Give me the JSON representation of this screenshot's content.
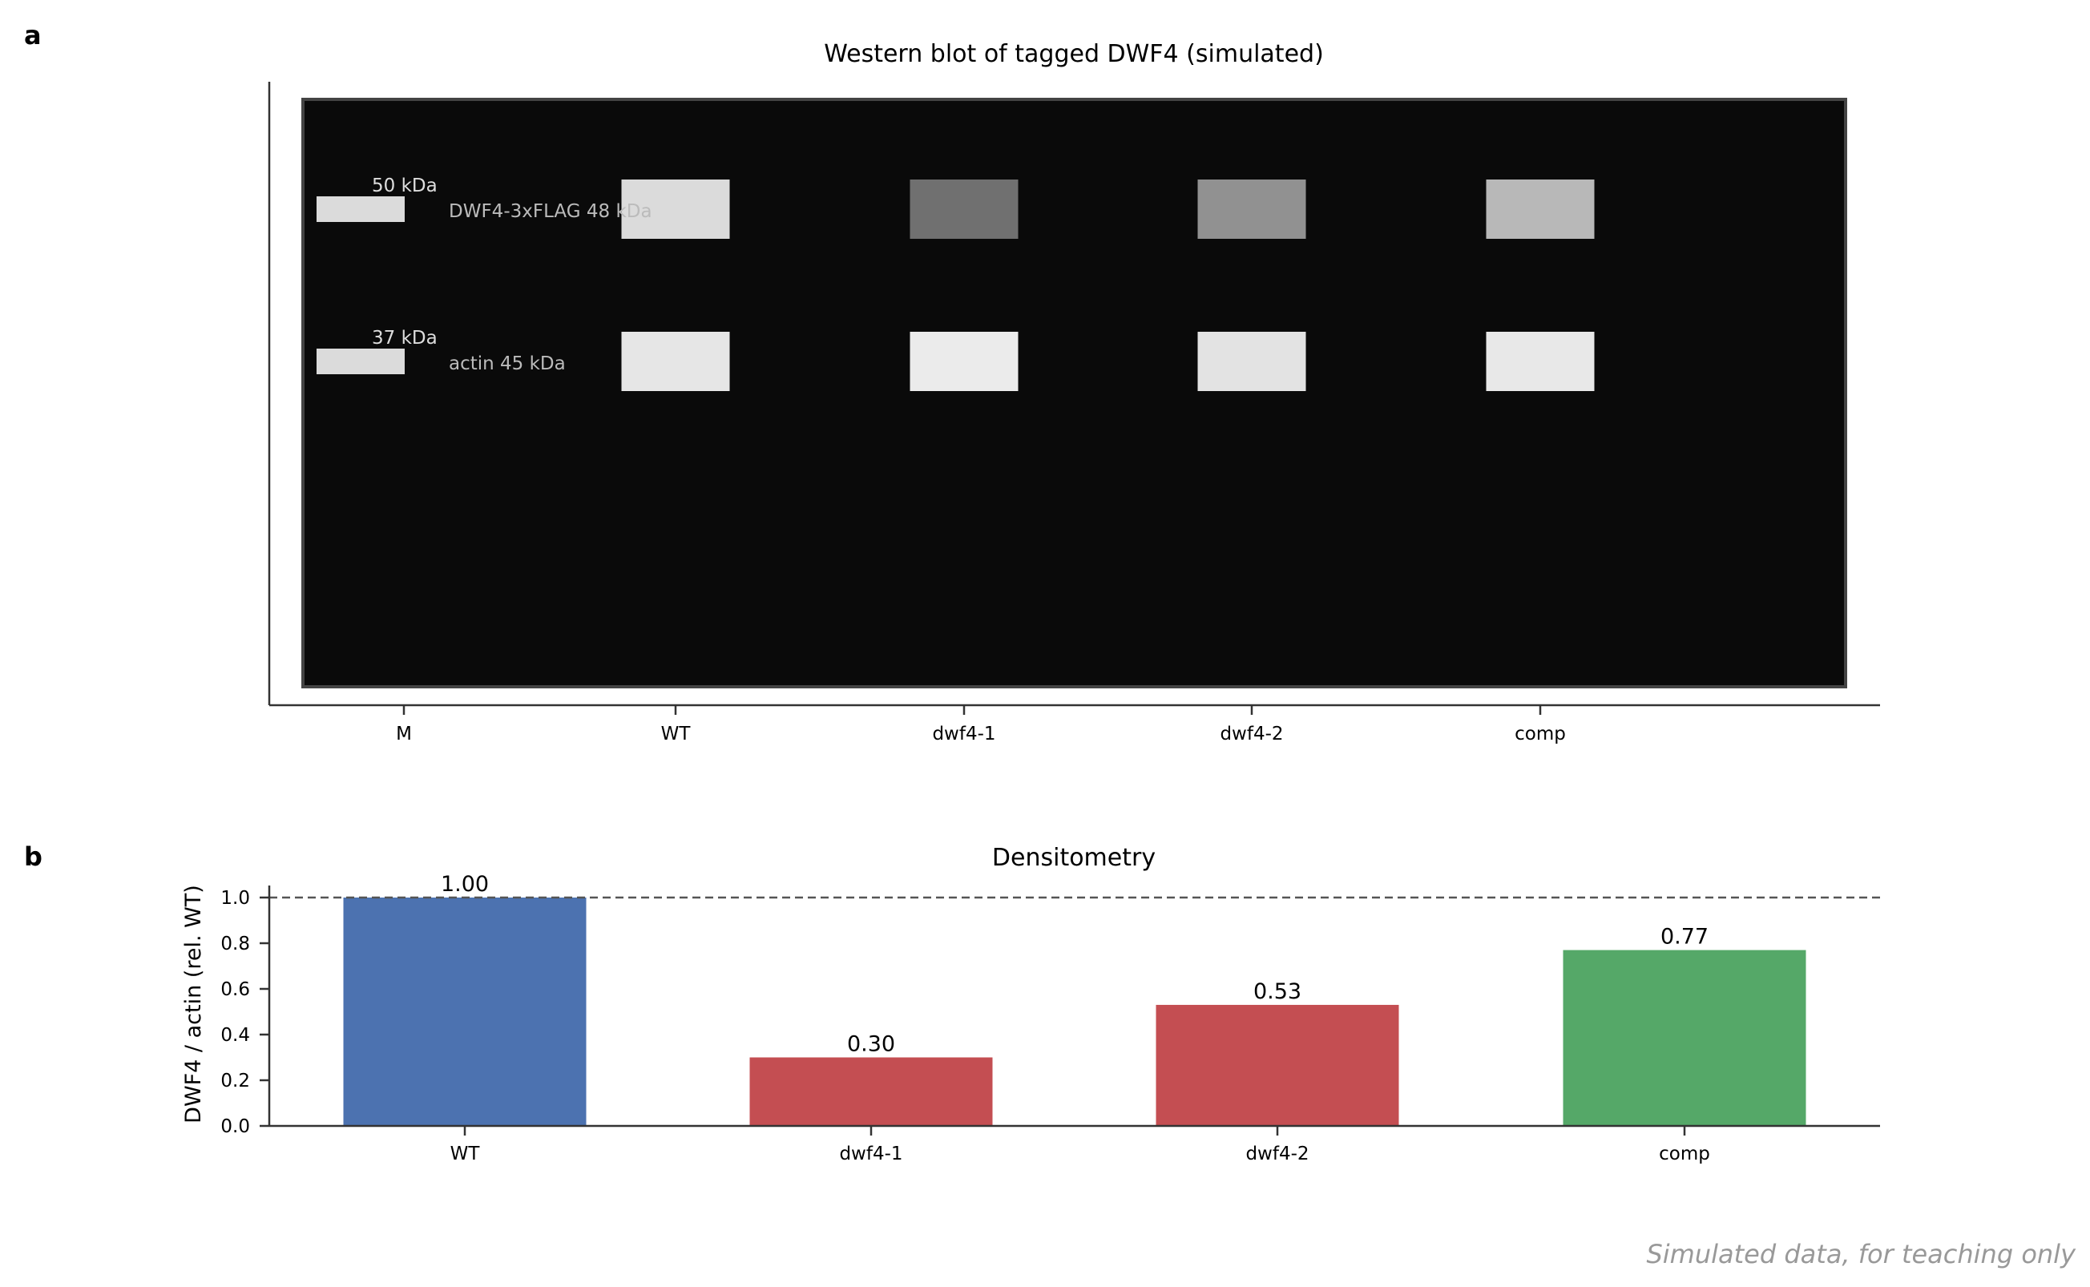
{
  "panel_labels": [
    "a",
    "b"
  ],
  "footer": "Simulated data, for teaching only",
  "chart_data": [
    {
      "type": "blot",
      "title": "Western blot of tagged DWF4 (simulated)",
      "lanes": [
        "M",
        "WT",
        "dwf4-1",
        "dwf4-2",
        "comp"
      ],
      "marker_labels": [
        "50 kDa",
        "37 kDa"
      ],
      "row_labels": [
        "DWF4-3xFLAG 48 kDa",
        "actin 45 kDa"
      ],
      "rows": [
        {
          "name": "DWF4-3xFLAG",
          "intensities": [
            0.86,
            0.86,
            0.44,
            0.57,
            0.72
          ]
        },
        {
          "name": "actin",
          "intensities": [
            0.86,
            0.9,
            0.92,
            0.89,
            0.91
          ]
        }
      ],
      "colors": {
        "gel": "#0a0a0a",
        "frame": "#444444"
      }
    },
    {
      "type": "bar",
      "title": "Densitometry",
      "categories": [
        "WT",
        "dwf4-1",
        "dwf4-2",
        "comp"
      ],
      "values": [
        1.0,
        0.3,
        0.53,
        0.77
      ],
      "value_labels": [
        "1.00",
        "0.30",
        "0.53",
        "0.77"
      ],
      "ylabel": "DWF4 / actin (rel. WT)",
      "ylim": [
        0,
        1.05
      ],
      "yticks": [
        0.0,
        0.2,
        0.4,
        0.6,
        0.8,
        1.0
      ],
      "ytick_labels": [
        "0.0",
        "0.2",
        "0.4",
        "0.6",
        "0.8",
        "1.0"
      ],
      "reference_line": 1.0,
      "colors": [
        "#4c72b0",
        "#c44e52",
        "#c44e52",
        "#55a868"
      ],
      "grid": false
    }
  ]
}
